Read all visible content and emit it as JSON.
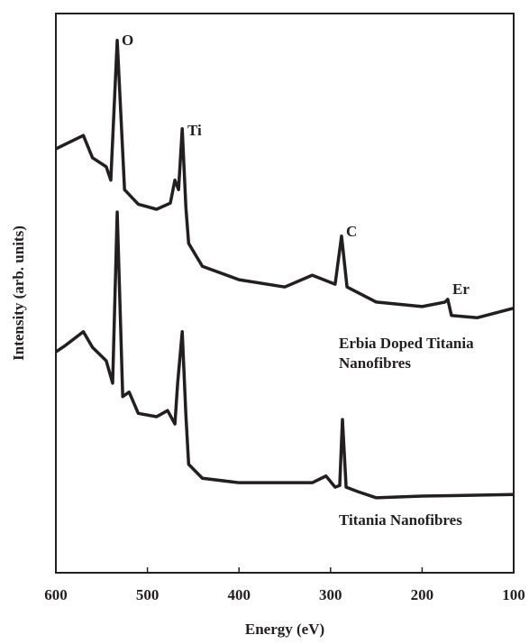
{
  "chart_data": {
    "type": "line",
    "xlabel": "Energy (eV)",
    "ylabel": "Intensity (arb. units)",
    "xlim": [
      600,
      100
    ],
    "xticks": [
      600,
      500,
      400,
      300,
      200,
      100
    ],
    "ylim": [
      0,
      100
    ],
    "series": [
      {
        "name": "Erbia Doped Titania Nanofibres",
        "color": "#231f20",
        "x": [
          600,
          590,
          570,
          560,
          545,
          540,
          533,
          525,
          510,
          490,
          475,
          470,
          466,
          462,
          458,
          455,
          440,
          400,
          350,
          320,
          295,
          288,
          282,
          250,
          200,
          175,
          172,
          168,
          140,
          100
        ],
        "values": [
          75.8,
          76.6,
          78.2,
          74.2,
          72.6,
          70.2,
          95.2,
          68.5,
          65.9,
          65.0,
          66.1,
          70.2,
          68.5,
          79.4,
          65.3,
          58.9,
          54.8,
          52.4,
          51.1,
          53.2,
          51.6,
          60.2,
          51.1,
          48.4,
          47.6,
          48.4,
          48.9,
          46.0,
          45.6,
          47.3
        ]
      },
      {
        "name": "Titania Nanofibres",
        "color": "#231f20",
        "x": [
          600,
          590,
          570,
          560,
          545,
          538,
          533,
          527,
          520,
          510,
          490,
          478,
          470,
          467,
          462,
          458,
          455,
          440,
          400,
          320,
          305,
          295,
          290,
          287,
          283,
          270,
          250,
          200,
          100
        ],
        "values": [
          39.5,
          40.6,
          43.1,
          40.3,
          37.9,
          33.9,
          64.5,
          31.5,
          32.3,
          28.5,
          27.9,
          29.0,
          26.6,
          33.9,
          43.1,
          28.2,
          19.4,
          16.9,
          16.1,
          16.1,
          17.3,
          15.3,
          15.6,
          27.4,
          15.3,
          14.5,
          13.4,
          13.7,
          14.0
        ]
      }
    ],
    "annotations": [
      "O",
      "Ti",
      "C",
      "Er"
    ]
  }
}
